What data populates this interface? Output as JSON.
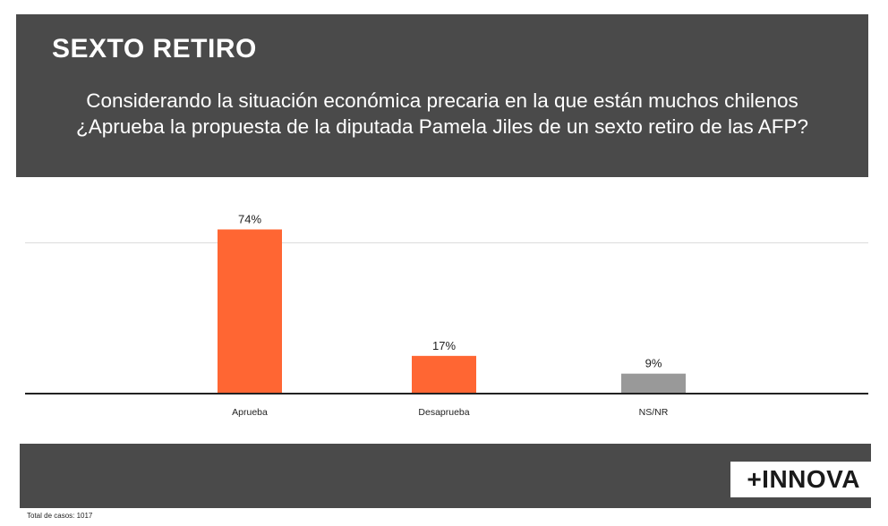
{
  "header": {
    "title": "SEXTO RETIRO",
    "question_line1": "Considerando la situación económica precaria en la que están muchos chilenos",
    "question_line2": "¿Aprueba la propuesta de la diputada Pamela Jiles de un sexto retiro de las AFP?"
  },
  "footer": {
    "brand": "+INNOVA",
    "note": "Total de casos: 1017"
  },
  "chart_data": {
    "type": "bar",
    "categories": [
      "Aprueba",
      "Desaprueba",
      "NS/NR"
    ],
    "values": [
      74,
      17,
      9
    ],
    "data_labels": [
      "74%",
      "17%",
      "9%"
    ],
    "colors": [
      "#ff6633",
      "#ff6633",
      "#999999"
    ],
    "gridline_color": "#d9d9d9",
    "baseline_color": "#222222",
    "ylim": [
      0,
      80
    ],
    "grid": true,
    "legend": "none"
  }
}
